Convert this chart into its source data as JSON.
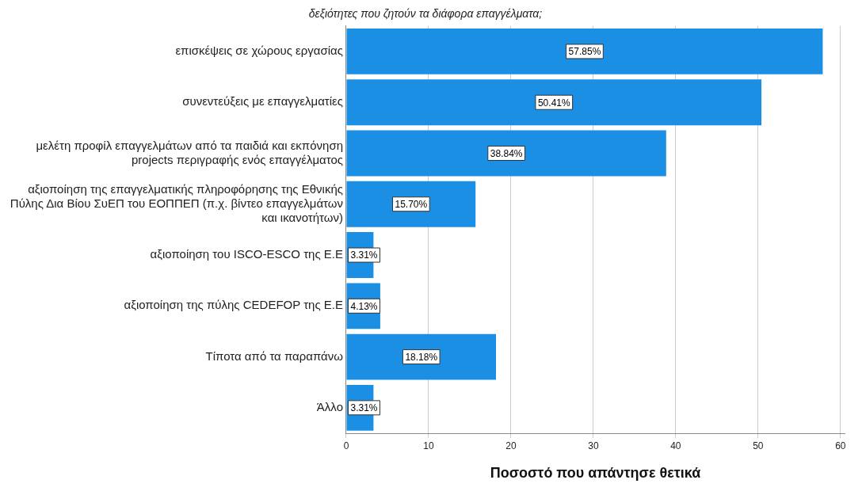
{
  "chart_data": {
    "type": "bar",
    "orientation": "horizontal",
    "title": "δεξιότητες που ζητούν τα διάφορα επαγγέλματα;",
    "xlabel": "Ποσοστό που απάντησε θετικά",
    "categories": [
      "επισκέψεις σε χώρους εργασίας",
      "συνεντεύξεις με επαγγελματίες",
      "μελέτη προφίλ επαγγελμάτων από τα παιδιά και εκπόνηση projects περιγραφής ενός επαγγέλματος",
      "αξιοποίηση της επαγγελματικής πληροφόρησης της Εθνικής Πύλης Δια Βίου ΣυΕΠ του ΕΟΠΠΕΠ (π.χ. βίντεο επαγγελμάτων και ικανοτήτων)",
      "αξιοποίηση του ISCO-ESCO της Ε.Ε",
      "αξιοποίηση της πύλης CEDEFOP της Ε.Ε",
      "Τίποτα από τα παραπάνω",
      "Άλλο"
    ],
    "values": [
      57.85,
      50.41,
      38.84,
      15.7,
      3.31,
      4.13,
      18.18,
      3.31
    ],
    "value_labels": [
      "57.85%",
      "50.41%",
      "38.84%",
      "15.70%",
      "3.31%",
      "4.13%",
      "18.18%",
      "3.31%"
    ],
    "color": "#1a8fe4",
    "xlim": [
      0,
      60.5
    ],
    "xticks": [
      0,
      10,
      20,
      30,
      40,
      50,
      60
    ],
    "grid": "x",
    "legend": false
  }
}
